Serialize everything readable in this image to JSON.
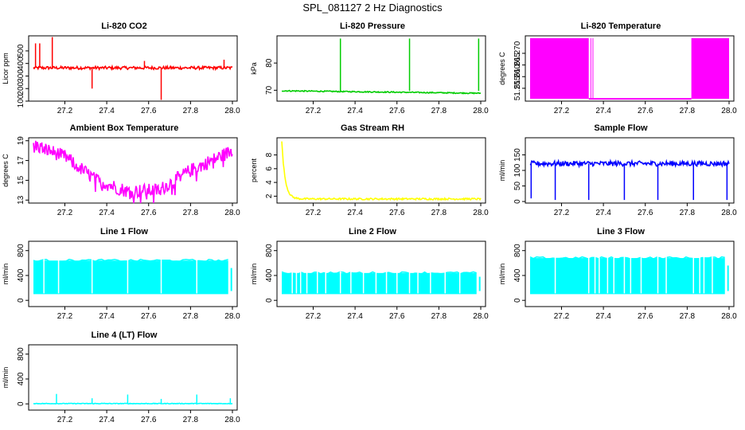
{
  "title": "SPL_081127  2 Hz Diagnostics",
  "chart_data": [
    {
      "type": "line",
      "title": "Li-820 CO2",
      "xlabel": "",
      "ylabel": "Licor ppm",
      "xlim": [
        27.05,
        28.0
      ],
      "ylim": [
        100,
        620
      ],
      "xticks": [
        27.2,
        27.4,
        27.6,
        27.8,
        28.0
      ],
      "xtick_labels": [
        "27.2",
        "27.4",
        "27.6",
        "27.8",
        "28.0"
      ],
      "yticks": [
        100,
        200,
        300,
        400,
        500
      ],
      "ytick_labels": [
        "100",
        "200",
        "300",
        "400",
        "500"
      ],
      "series": [
        {
          "name": "co2",
          "color": "#ff0000",
          "pattern": "noise",
          "base": 365,
          "noise": 12,
          "spikes": [
            [
              27.06,
              560
            ],
            [
              27.08,
              560
            ],
            [
              27.14,
              610
            ],
            [
              27.33,
              200
            ],
            [
              27.58,
              420
            ],
            [
              27.66,
              110
            ],
            [
              27.96,
              430
            ]
          ]
        }
      ]
    },
    {
      "type": "line",
      "title": "Li-820 Pressure",
      "xlabel": "",
      "ylabel": "kPa",
      "xlim": [
        27.05,
        28.0
      ],
      "ylim": [
        66,
        90
      ],
      "xticks": [
        27.2,
        27.4,
        27.6,
        27.8,
        28.0
      ],
      "xtick_labels": [
        "27.2",
        "27.4",
        "27.6",
        "27.8",
        "28.0"
      ],
      "yticks": [
        70,
        80
      ],
      "ytick_labels": [
        "70",
        "80"
      ],
      "series": [
        {
          "name": "pressure",
          "color": "#00cc00",
          "pattern": "linear",
          "start": 69.8,
          "end": 68.9,
          "noise": 0.4,
          "spikes": [
            [
              27.33,
              89
            ],
            [
              27.66,
              89
            ],
            [
              27.99,
              89
            ]
          ]
        }
      ]
    },
    {
      "type": "area",
      "title": "Li-820 Temperature",
      "xlabel": "",
      "ylabel": "degrees C",
      "xlim": [
        27.05,
        28.0
      ],
      "ylim": [
        51.2495,
        51.2775
      ],
      "xticks": [
        27.2,
        27.4,
        27.6,
        27.8,
        28.0
      ],
      "xtick_labels": [
        "27.2",
        "27.4",
        "27.6",
        "27.8",
        "28.0"
      ],
      "yticks": [
        51.255,
        51.26,
        51.265,
        51.27
      ],
      "ytick_labels": [
        "51.255",
        "51.260",
        "51.265",
        "51.270"
      ],
      "series": [
        {
          "name": "temperature",
          "color": "#ff00ff",
          "low": 51.2505,
          "high": 51.2765,
          "bands": [
            [
              27.05,
              27.33
            ],
            [
              27.82,
              28.0
            ]
          ],
          "flat": 51.2505
        }
      ]
    },
    {
      "type": "line",
      "title": "Ambient Box Temperature",
      "xlabel": "",
      "ylabel": "degrees C",
      "xlim": [
        27.05,
        28.0
      ],
      "ylim": [
        12.7,
        19.3
      ],
      "xticks": [
        27.2,
        27.4,
        27.6,
        27.8,
        28.0
      ],
      "xtick_labels": [
        "27.2",
        "27.4",
        "27.6",
        "27.8",
        "28.0"
      ],
      "yticks": [
        13,
        15,
        17,
        19
      ],
      "ytick_labels": [
        "13",
        "15",
        "17",
        "19"
      ],
      "series": [
        {
          "name": "ambient",
          "color": "#ff00ff",
          "pattern": "valley",
          "noise": 0.7,
          "points": [
            [
              27.05,
              18.6
            ],
            [
              27.2,
              17.4
            ],
            [
              27.35,
              15.0
            ],
            [
              27.5,
              13.9
            ],
            [
              27.65,
              14.0
            ],
            [
              27.8,
              16.0
            ],
            [
              28.0,
              18.0
            ]
          ]
        }
      ]
    },
    {
      "type": "line",
      "title": "Gas Stream RH",
      "xlabel": "",
      "ylabel": "percent",
      "xlim": [
        27.05,
        28.0
      ],
      "ylim": [
        1,
        10.5
      ],
      "xticks": [
        27.2,
        27.4,
        27.6,
        27.8,
        28.0
      ],
      "xtick_labels": [
        "27.2",
        "27.4",
        "27.6",
        "27.8",
        "28.0"
      ],
      "yticks": [
        2,
        4,
        6,
        8
      ],
      "ytick_labels": [
        "2",
        "4",
        "6",
        "8"
      ],
      "series": [
        {
          "name": "rh",
          "color": "#ffff00",
          "pattern": "decay",
          "base": 1.6,
          "peak": 10,
          "noise": 0.25
        }
      ]
    },
    {
      "type": "line",
      "title": "Sample Flow",
      "xlabel": "",
      "ylabel": "ml/min",
      "xlim": [
        27.05,
        28.0
      ],
      "ylim": [
        -5,
        205
      ],
      "xticks": [
        27.2,
        27.4,
        27.6,
        27.8,
        28.0
      ],
      "xtick_labels": [
        "27.2",
        "27.4",
        "27.6",
        "27.8",
        "28.0"
      ],
      "yticks": [
        0,
        50,
        100,
        150
      ],
      "ytick_labels": [
        "0",
        "50",
        "100",
        "150"
      ],
      "series": [
        {
          "name": "sample",
          "color": "#0000ff",
          "pattern": "noise",
          "base": 122,
          "noise": 8,
          "spikes": [
            [
              27.055,
              10
            ],
            [
              27.17,
              5
            ],
            [
              27.33,
              5
            ],
            [
              27.5,
              5
            ],
            [
              27.66,
              5
            ],
            [
              27.83,
              5
            ],
            [
              27.99,
              5
            ]
          ]
        }
      ]
    },
    {
      "type": "area",
      "title": "Line 1 Flow",
      "xlabel": "",
      "ylabel": "ml/min",
      "xlim": [
        27.05,
        28.0
      ],
      "ylim": [
        -100,
        950
      ],
      "xticks": [
        27.2,
        27.4,
        27.6,
        27.8,
        28.0
      ],
      "xtick_labels": [
        "27.2",
        "27.4",
        "27.6",
        "27.8",
        "28.0"
      ],
      "yticks": [
        0,
        400,
        800
      ],
      "ytick_labels": [
        "0",
        "400",
        "800"
      ],
      "series": [
        {
          "name": "line1",
          "color": "#00ffff",
          "low": 100,
          "high": 640,
          "gaps": [
            27.1,
            27.17,
            27.33,
            27.5,
            27.66,
            27.83
          ],
          "end_high": 520
        }
      ]
    },
    {
      "type": "area",
      "title": "Line 2 Flow",
      "xlabel": "",
      "ylabel": "ml/min",
      "xlim": [
        27.05,
        28.0
      ],
      "ylim": [
        -100,
        950
      ],
      "xticks": [
        27.2,
        27.4,
        27.6,
        27.8,
        28.0
      ],
      "xtick_labels": [
        "27.2",
        "27.4",
        "27.6",
        "27.8",
        "28.0"
      ],
      "yticks": [
        0,
        400,
        800
      ],
      "ytick_labels": [
        "0",
        "400",
        "800"
      ],
      "series": [
        {
          "name": "line2",
          "color": "#00ffff",
          "low": 100,
          "high": 440,
          "gaps": [
            27.1,
            27.12,
            27.14,
            27.17,
            27.22,
            27.26,
            27.33,
            27.38,
            27.44,
            27.5,
            27.55,
            27.6,
            27.66,
            27.7,
            27.76,
            27.83,
            27.9
          ],
          "end_high": 380
        }
      ]
    },
    {
      "type": "area",
      "title": "Line 3 Flow",
      "xlabel": "",
      "ylabel": "ml/min",
      "xlim": [
        27.05,
        28.0
      ],
      "ylim": [
        -100,
        950
      ],
      "xticks": [
        27.2,
        27.4,
        27.6,
        27.8,
        28.0
      ],
      "xtick_labels": [
        "27.2",
        "27.4",
        "27.6",
        "27.8",
        "28.0"
      ],
      "yticks": [
        0,
        400,
        800
      ],
      "ytick_labels": [
        "0",
        "400",
        "800"
      ],
      "series": [
        {
          "name": "line3",
          "color": "#00ffff",
          "low": 100,
          "high": 680,
          "gaps": [
            27.17,
            27.33,
            27.36,
            27.38,
            27.42,
            27.45,
            27.5,
            27.53,
            27.58,
            27.66,
            27.7,
            27.83,
            27.86,
            27.88,
            27.92
          ],
          "end_high": 560
        }
      ]
    },
    {
      "type": "line",
      "title": "Line 4 (LT) Flow",
      "xlabel": "",
      "ylabel": "ml/min",
      "xlim": [
        27.05,
        28.0
      ],
      "ylim": [
        -100,
        950
      ],
      "xticks": [
        27.2,
        27.4,
        27.6,
        27.8,
        28.0
      ],
      "xtick_labels": [
        "27.2",
        "27.4",
        "27.6",
        "27.8",
        "28.0"
      ],
      "yticks": [
        0,
        400,
        800
      ],
      "ytick_labels": [
        "0",
        "400",
        "800"
      ],
      "series": [
        {
          "name": "line4",
          "color": "#00ffff",
          "pattern": "noise",
          "base": 5,
          "noise": 5,
          "spikes": [
            [
              27.16,
              160
            ],
            [
              27.33,
              90
            ],
            [
              27.5,
              150
            ],
            [
              27.66,
              80
            ],
            [
              27.83,
              150
            ],
            [
              27.99,
              90
            ]
          ]
        }
      ]
    }
  ]
}
